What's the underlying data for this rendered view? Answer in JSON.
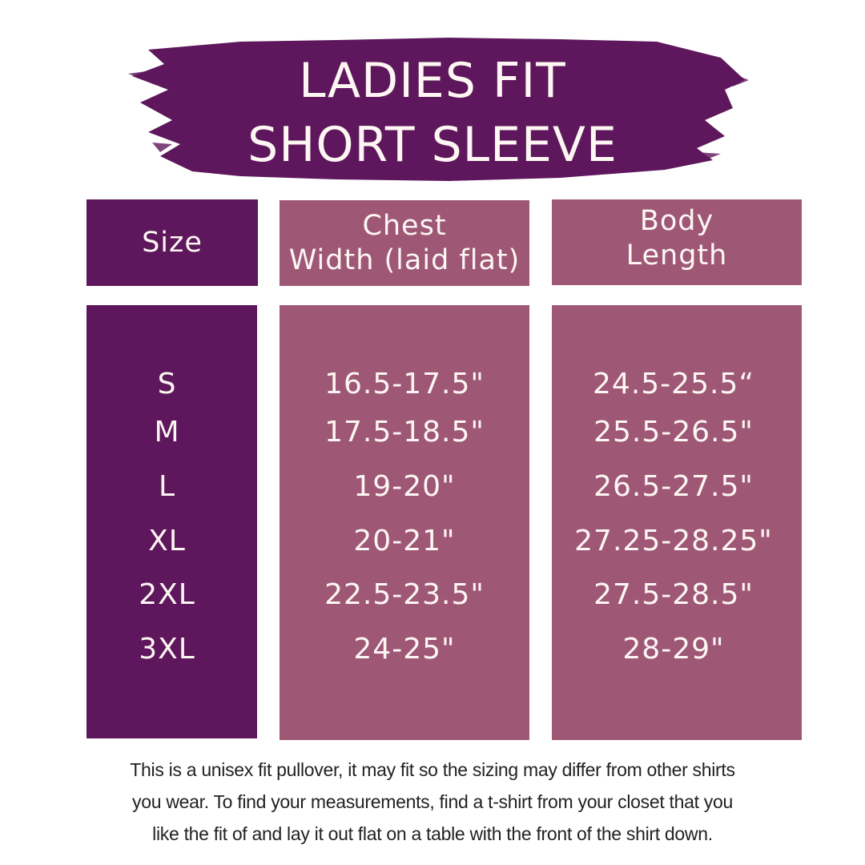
{
  "title": {
    "line1": "LADIES FIT",
    "line2": "SHORT SLEEVE"
  },
  "colors": {
    "dark_purple": "#5e175c",
    "mauve": "#9e5876",
    "text": "#fdf6f2"
  },
  "table": {
    "headers": [
      {
        "lines": [
          "Size"
        ]
      },
      {
        "lines": [
          "Chest",
          "Width (laid flat)"
        ]
      },
      {
        "lines": [
          "Body",
          "Length"
        ]
      }
    ],
    "rows": [
      {
        "size": "S",
        "chest": "16.5-17.5\"",
        "length": "24.5-25.5“"
      },
      {
        "size": "M",
        "chest": "17.5-18.5\"",
        "length": "25.5-26.5\""
      },
      {
        "size": "L",
        "chest": "19-20\"",
        "length": "26.5-27.5\""
      },
      {
        "size": "XL",
        "chest": "20-21\"",
        "length": "27.25-28.25\""
      },
      {
        "size": "2XL",
        "chest": "22.5-23.5\"",
        "length": "27.5-28.5\""
      },
      {
        "size": "3XL",
        "chest": "24-25\"",
        "length": "28-29\""
      }
    ]
  },
  "footer": {
    "lines": [
      "This is a unisex fit pullover, it may fit so the sizing may differ from other shirts",
      "you wear. To find your measurements, find a t-shirt from your closet that you",
      "like the fit of and lay it out flat on a table with the front of the shirt down."
    ]
  }
}
